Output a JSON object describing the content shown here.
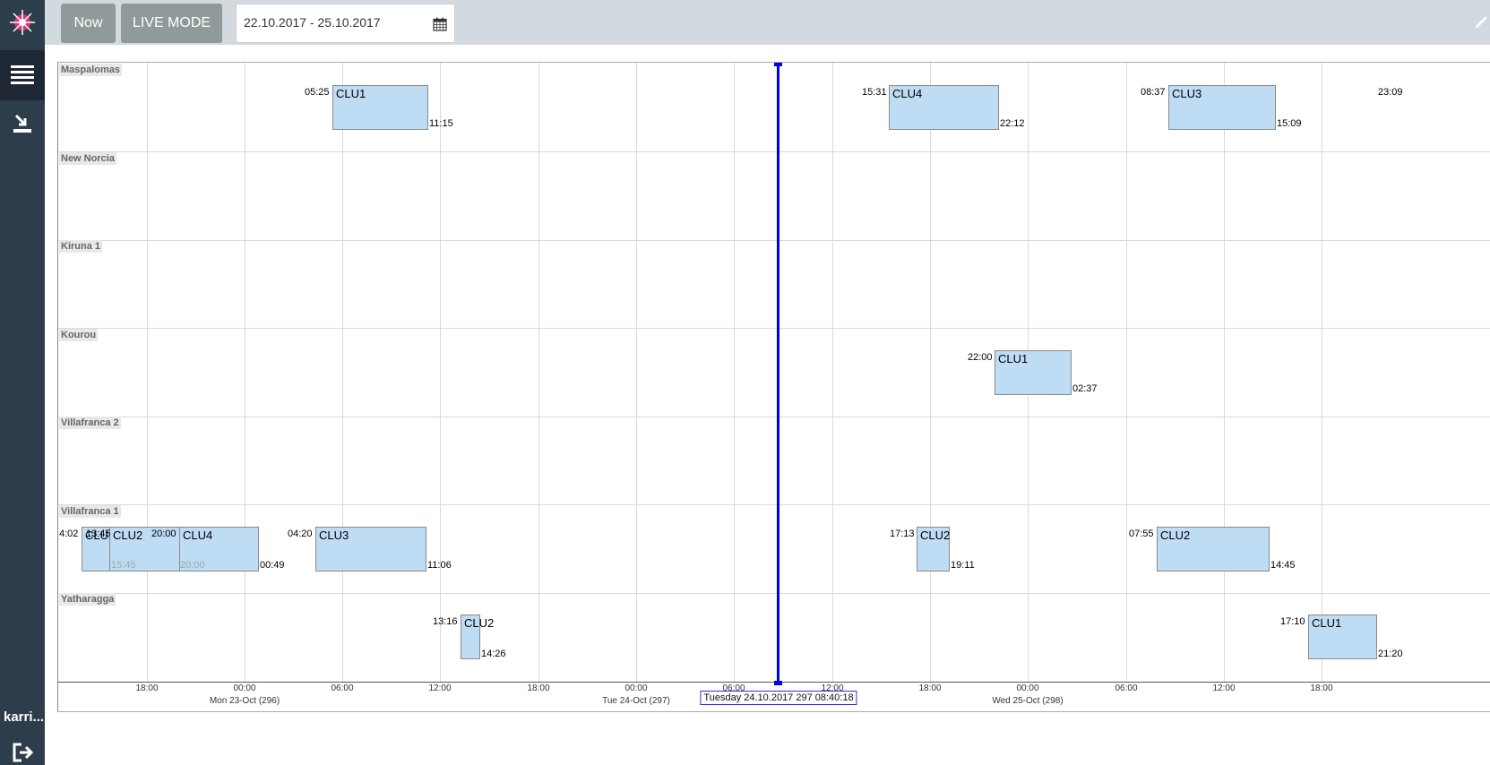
{
  "sidebar": {
    "user": "karri...",
    "icons": [
      "app-logo",
      "menu-icon",
      "download-icon",
      "logout-icon"
    ]
  },
  "toolbar": {
    "now_label": "Now",
    "live_label": "LIVE MODE",
    "date_range": "22.10.2017 - 25.10.2017"
  },
  "timeline": {
    "rows": [
      "Maspalomas",
      "New Norcia",
      "Kiruna 1",
      "Kourou",
      "Villafranca 2",
      "Villafranca 1",
      "Yatharagga"
    ],
    "hour_ticks": [
      "18:00",
      "00:00",
      "06:00",
      "12:00",
      "18:00",
      "00:00",
      "06:00",
      "12:00",
      "18:00",
      "00:00",
      "06:00",
      "12:00",
      "18:00"
    ],
    "day_labels": [
      "Mon 23-Oct (296)",
      "Tue 24-Oct (297)",
      "Wed 25-Oct (298)"
    ],
    "now_label": "Tuesday 24.10.2017 297 08:40:18",
    "passes": [
      {
        "row": 0,
        "name": "CLU1",
        "start": "05:25",
        "end": "11:15"
      },
      {
        "row": 0,
        "name": "CLU4",
        "start": "15:31",
        "end": "22:12"
      },
      {
        "row": 0,
        "name": "CLU3",
        "start": "08:37",
        "end": "15:09"
      },
      {
        "row": 0,
        "name": "",
        "start": "23:09",
        "end": ""
      },
      {
        "row": 3,
        "name": "CLU1",
        "start": "22:00",
        "end": "02:37"
      },
      {
        "row": 5,
        "name": "CLU3",
        "start": "4:02",
        "end": ""
      },
      {
        "row": 5,
        "name": "CLU2",
        "start": "13:45",
        "end": "15:45"
      },
      {
        "row": 5,
        "name": "CLU4",
        "start": "20:00",
        "end": "00:49"
      },
      {
        "row": 5,
        "name": "CLU3",
        "start": "04:20",
        "end": "11:06"
      },
      {
        "row": 5,
        "name": "CLU2",
        "start": "17:13",
        "end": "19:11"
      },
      {
        "row": 5,
        "name": "CLU2",
        "start": "07:55",
        "end": "14:45"
      },
      {
        "row": 6,
        "name": "CLU2",
        "start": "13:16",
        "end": "14:26"
      },
      {
        "row": 6,
        "name": "CLU1",
        "start": "17:10",
        "end": "21:20"
      }
    ],
    "extra_labels": [
      "20:00"
    ]
  }
}
